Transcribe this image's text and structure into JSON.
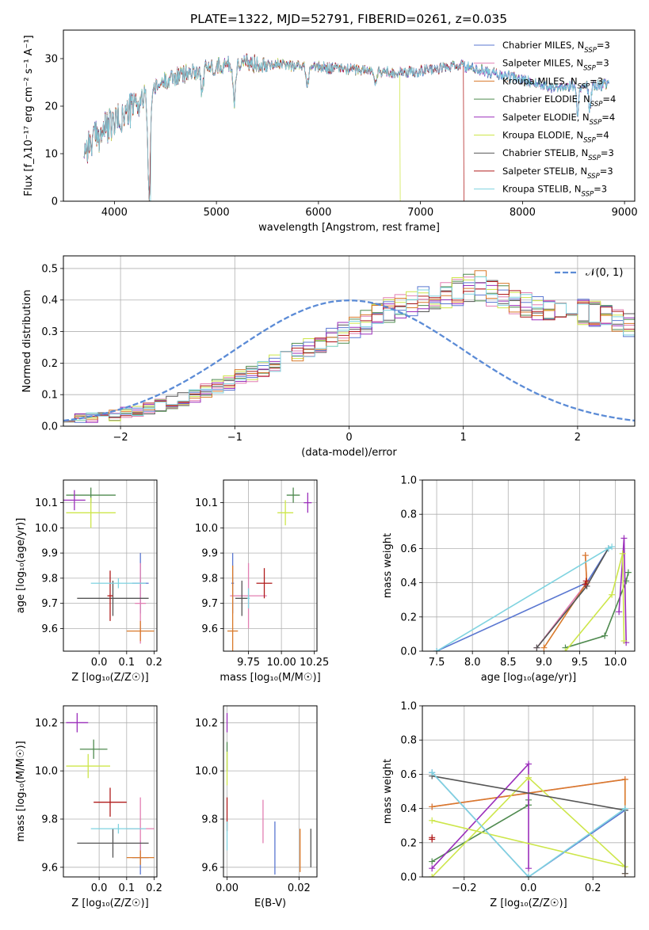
{
  "figure": {
    "title": "PLATE=1322, MJD=52791, FIBERID=0261, z=0.035"
  },
  "colors": {
    "chabrier_miles": "#5a77d1",
    "salpeter_miles": "#e27fb2",
    "kroupa_miles": "#d97a2b",
    "chabrier_elodie": "#4f8a4f",
    "salpeter_elodie": "#9b2fbb",
    "kroupa_elodie": "#cde64a",
    "chabrier_stelib": "#555555",
    "salpeter_stelib": "#b01c1c",
    "kroupa_stelib": "#7fd3e0",
    "gaussian": "#5b8bd6"
  },
  "chart_data": [
    {
      "id": "spectrum",
      "type": "line",
      "xlabel": "wavelength [Angstrom, rest frame]",
      "ylabel": "Flux [f_λ10⁻¹⁷ erg cm⁻² s⁻¹ A⁻¹]",
      "xlim": [
        3500,
        9100
      ],
      "ylim": [
        0,
        36
      ],
      "xticks": [
        4000,
        5000,
        6000,
        7000,
        8000,
        9000
      ],
      "yticks": [
        0,
        10,
        20,
        30
      ],
      "grid": false,
      "legend_position": "top-right",
      "legend": [
        "Chabrier MILES, N_SSP=3",
        "Salpeter MILES, N_SSP=3",
        "Kroupa MILES, N_SSP=3",
        "Chabrier ELODIE, N_SSP=4",
        "Salpeter ELODIE, N_SSP=4",
        "Kroupa ELODIE, N_SSP=4",
        "Chabrier STELIB, N_SSP=3",
        "Salpeter STELIB, N_SSP=3",
        "Kroupa STELIB, N_SSP=3"
      ],
      "continuum": {
        "x": [
          3700,
          3900,
          4100,
          4300,
          4500,
          4800,
          5000,
          5200,
          5500,
          5800,
          6000,
          6200,
          6500,
          6800,
          7000,
          7200,
          7400,
          7700,
          8000,
          8300,
          8600,
          8800
        ],
        "y": [
          11,
          15,
          18,
          22,
          25.5,
          27.5,
          28.5,
          29,
          29,
          28.5,
          28.2,
          28,
          27.5,
          27,
          27.5,
          28,
          28.5,
          27,
          25.5,
          24,
          24.5,
          24.5
        ]
      },
      "features": [
        {
          "x": 4340,
          "depth": 22
        },
        {
          "x": 4860,
          "depth": 5
        },
        {
          "x": 5175,
          "depth": 8
        },
        {
          "x": 5890,
          "depth": 4
        },
        {
          "x": 6560,
          "depth": 3
        },
        {
          "x": 8540,
          "depth": 6
        },
        {
          "x": 8660,
          "depth": 5
        }
      ],
      "cutoffs": [
        {
          "series": "kroupa_elodie",
          "x": 6800
        },
        {
          "series": "salpeter_stelib",
          "x": 7420
        }
      ]
    },
    {
      "id": "residuals",
      "type": "line",
      "xlabel": "(data-model)/error",
      "ylabel": "Normed distribution",
      "xlim": [
        -2.5,
        2.5
      ],
      "ylim": [
        0,
        0.54
      ],
      "xticks": [
        -2,
        -1,
        0,
        1,
        2
      ],
      "yticks": [
        0.0,
        0.1,
        0.2,
        0.3,
        0.4,
        0.5
      ],
      "grid": true,
      "legend_position": "top-right",
      "legend": [
        "𝒩(0, 1)"
      ],
      "bin_width": 0.1,
      "bin_start": -2.5,
      "base_hist": [
        0.022,
        0.024,
        0.027,
        0.028,
        0.034,
        0.042,
        0.048,
        0.056,
        0.066,
        0.075,
        0.086,
        0.098,
        0.111,
        0.124,
        0.139,
        0.153,
        0.168,
        0.184,
        0.199,
        0.215,
        0.231,
        0.246,
        0.262,
        0.278,
        0.296,
        0.318,
        0.332,
        0.349,
        0.368,
        0.383,
        0.392,
        0.398,
        0.407,
        0.418,
        0.428,
        0.435,
        0.445,
        0.422,
        0.41,
        0.39,
        0.38,
        0.375,
        0.37,
        0.372,
        0.368,
        0.363,
        0.355,
        0.346,
        0.333,
        0.318,
        0.302,
        0.287,
        0.272,
        0.254,
        0.234,
        0.213,
        0.192,
        0.171,
        0.151,
        0.133,
        0.118,
        0.104,
        0.092,
        0.081,
        0.071,
        0.062,
        0.056,
        0.052,
        0.049,
        0.047,
        0.045,
        0.042,
        0.038,
        0.035,
        0.032,
        0.03,
        0.028,
        0.027,
        0.026,
        0.025
      ],
      "gaussian": {
        "mean": 0,
        "sigma": 1
      }
    },
    {
      "id": "age-vs-Z",
      "type": "scatter",
      "xlabel": "Z [log₁₀(Z/Z☉)]",
      "ylabel": "age  [log₁₀(age/yr)]",
      "xlim": [
        -0.13,
        0.21
      ],
      "ylim": [
        9.51,
        10.19
      ],
      "xticks": [
        0.0,
        0.1,
        0.2
      ],
      "yticks": [
        9.6,
        9.7,
        9.8,
        9.9,
        10.0,
        10.1
      ],
      "grid": true,
      "points": [
        {
          "series": "chabrier_miles",
          "x": 0.15,
          "y": 9.78,
          "xerr": 0.03,
          "yerr": 0.12
        },
        {
          "series": "salpeter_miles",
          "x": 0.15,
          "y": 9.7,
          "xerr": 0.02,
          "yerr": 0.16
        },
        {
          "series": "kroupa_miles",
          "x": 0.15,
          "y": 9.59,
          "xerr": 0.05,
          "yerr": 0.04
        },
        {
          "series": "chabrier_elodie",
          "x": -0.03,
          "y": 10.13,
          "xerr": 0.09,
          "yerr": 0.03
        },
        {
          "series": "salpeter_elodie",
          "x": -0.09,
          "y": 10.11,
          "xerr": 0.04,
          "yerr": 0.04
        },
        {
          "series": "kroupa_elodie",
          "x": -0.03,
          "y": 10.06,
          "xerr": 0.09,
          "yerr": 0.06
        },
        {
          "series": "chabrier_stelib",
          "x": 0.05,
          "y": 9.72,
          "xerr": 0.13,
          "yerr": 0.07
        },
        {
          "series": "salpeter_stelib",
          "x": 0.04,
          "y": 9.73,
          "xerr": 0.01,
          "yerr": 0.1
        },
        {
          "series": "kroupa_stelib",
          "x": 0.07,
          "y": 9.78,
          "xerr": 0.1,
          "yerr": 0.02
        }
      ]
    },
    {
      "id": "age-vs-mass",
      "type": "scatter",
      "xlabel": "mass [log₁₀(M/M☉)]",
      "ylabel": "",
      "xlim": [
        9.56,
        10.27
      ],
      "ylim": [
        9.51,
        10.19
      ],
      "xticks": [
        9.75,
        10.0,
        10.25
      ],
      "yticks": [
        9.6,
        9.7,
        9.8,
        9.9,
        10.0,
        10.1
      ],
      "grid": true,
      "points": [
        {
          "series": "chabrier_miles",
          "x": 9.63,
          "y": 9.78,
          "xerr": 0.01,
          "yerr": 0.12
        },
        {
          "series": "salpeter_miles",
          "x": 9.75,
          "y": 9.73,
          "xerr": 0.14,
          "yerr": 0.13
        },
        {
          "series": "kroupa_miles",
          "x": 9.63,
          "y": 9.59,
          "xerr": 0.04,
          "yerr": 0.26
        },
        {
          "series": "chabrier_elodie",
          "x": 10.09,
          "y": 10.13,
          "xerr": 0.05,
          "yerr": 0.03
        },
        {
          "series": "salpeter_elodie",
          "x": 10.2,
          "y": 10.1,
          "xerr": 0.03,
          "yerr": 0.04
        },
        {
          "series": "kroupa_elodie",
          "x": 10.03,
          "y": 10.06,
          "xerr": 0.06,
          "yerr": 0.05
        },
        {
          "series": "chabrier_stelib",
          "x": 9.7,
          "y": 9.72,
          "xerr": 0.05,
          "yerr": 0.07
        },
        {
          "series": "salpeter_stelib",
          "x": 9.87,
          "y": 9.78,
          "xerr": 0.06,
          "yerr": 0.06
        },
        {
          "series": "kroupa_stelib",
          "x": 9.75,
          "y": 9.72,
          "xerr": 0.01,
          "yerr": 0.04
        }
      ]
    },
    {
      "id": "mass-weight-vs-age",
      "type": "line",
      "xlabel": "age  [log₁₀(age/yr)]",
      "ylabel": "mass weight",
      "xlim": [
        7.3,
        10.27
      ],
      "ylim": [
        0,
        1.0
      ],
      "xticks": [
        7.5,
        8.0,
        8.5,
        9.0,
        9.5,
        10.0
      ],
      "yticks": [
        0.0,
        0.2,
        0.4,
        0.6,
        0.8,
        1.0
      ],
      "grid": true,
      "series": [
        {
          "series": "chabrier_miles",
          "x": [
            7.5,
            9.6,
            9.9
          ],
          "y": [
            0.0,
            0.4,
            0.6
          ]
        },
        {
          "series": "salpeter_miles",
          "x": [
            8.9,
            9.6,
            9.58
          ],
          "y": [
            0.02,
            0.4,
            0.56
          ]
        },
        {
          "series": "kroupa_miles",
          "x": [
            9.0,
            9.6,
            9.58
          ],
          "y": [
            0.02,
            0.4,
            0.56
          ]
        },
        {
          "series": "chabrier_elodie",
          "x": [
            9.3,
            9.85,
            10.15,
            10.18
          ],
          "y": [
            0.02,
            0.09,
            0.41,
            0.46
          ]
        },
        {
          "series": "salpeter_elodie",
          "x": [
            10.05,
            10.12,
            10.15
          ],
          "y": [
            0.23,
            0.66,
            0.05
          ]
        },
        {
          "series": "kroupa_elodie",
          "x": [
            9.3,
            9.95,
            10.1,
            10.12
          ],
          "y": [
            0.0,
            0.33,
            0.57,
            0.06
          ]
        },
        {
          "series": "chabrier_stelib",
          "x": [
            8.9,
            9.6,
            9.9
          ],
          "y": [
            0.02,
            0.38,
            0.6
          ]
        },
        {
          "series": "salpeter_stelib",
          "x": [
            9.58,
            9.59
          ],
          "y": [
            0.39,
            0.41
          ]
        },
        {
          "series": "kroupa_stelib",
          "x": [
            7.5,
            9.9,
            9.95
          ],
          "y": [
            0.0,
            0.6,
            0.61
          ]
        }
      ]
    },
    {
      "id": "mass-vs-Z",
      "type": "scatter",
      "xlabel": "Z [log₁₀(Z/Z☉)]",
      "ylabel": "mass [log₁₀(M/M☉)]",
      "xlim": [
        -0.13,
        0.21
      ],
      "ylim": [
        9.56,
        10.27
      ],
      "xticks": [
        0.0,
        0.1,
        0.2
      ],
      "yticks": [
        9.6,
        9.8,
        10.0,
        10.2
      ],
      "grid": true,
      "points": [
        {
          "series": "chabrier_miles",
          "x": 0.15,
          "y": 9.64,
          "xerr": 0.03,
          "yerr": 0.07
        },
        {
          "series": "salpeter_miles",
          "x": 0.15,
          "y": 9.76,
          "xerr": 0.05,
          "yerr": 0.13
        },
        {
          "series": "kroupa_miles",
          "x": 0.15,
          "y": 9.64,
          "xerr": 0.05,
          "yerr": 0.03
        },
        {
          "series": "chabrier_elodie",
          "x": -0.02,
          "y": 10.09,
          "xerr": 0.05,
          "yerr": 0.04
        },
        {
          "series": "salpeter_elodie",
          "x": -0.08,
          "y": 10.2,
          "xerr": 0.04,
          "yerr": 0.04
        },
        {
          "series": "kroupa_elodie",
          "x": -0.04,
          "y": 10.02,
          "xerr": 0.08,
          "yerr": 0.05
        },
        {
          "series": "chabrier_stelib",
          "x": 0.05,
          "y": 9.7,
          "xerr": 0.13,
          "yerr": 0.06
        },
        {
          "series": "salpeter_stelib",
          "x": 0.04,
          "y": 9.87,
          "xerr": 0.06,
          "yerr": 0.06
        },
        {
          "series": "kroupa_stelib",
          "x": 0.07,
          "y": 9.76,
          "xerr": 0.1,
          "yerr": 0.02
        }
      ]
    },
    {
      "id": "mass-vs-EBV",
      "type": "scatter",
      "xlabel": "E(B-V)",
      "ylabel": "",
      "xlim": [
        -0.001,
        0.025
      ],
      "ylim": [
        9.56,
        10.27
      ],
      "xticks": [
        0.0,
        0.02
      ],
      "yticks": [
        9.6,
        9.8,
        10.0,
        10.2
      ],
      "grid": true,
      "points": [
        {
          "series": "chabrier_miles",
          "x": 0.0133,
          "y": 9.68,
          "xerr": 0,
          "yerr": 0.11
        },
        {
          "series": "salpeter_miles",
          "x": 0.01,
          "y": 9.79,
          "xerr": 0,
          "yerr": 0.09
        },
        {
          "series": "kroupa_miles",
          "x": 0.0203,
          "y": 9.67,
          "xerr": 0,
          "yerr": 0.09
        },
        {
          "series": "chabrier_elodie",
          "x": 0.0,
          "y": 10.06,
          "xerr": 0,
          "yerr": 0.06
        },
        {
          "series": "salpeter_elodie",
          "x": 0.0,
          "y": 10.2,
          "xerr": 0,
          "yerr": 0.04
        },
        {
          "series": "kroupa_elodie",
          "x": 0.0,
          "y": 10.01,
          "xerr": 0,
          "yerr": 0.07
        },
        {
          "series": "chabrier_stelib",
          "x": 0.0233,
          "y": 9.68,
          "xerr": 0,
          "yerr": 0.08
        },
        {
          "series": "salpeter_stelib",
          "x": 0.0,
          "y": 9.82,
          "xerr": 0,
          "yerr": 0.07
        },
        {
          "series": "kroupa_stelib",
          "x": 0.0,
          "y": 9.73,
          "xerr": 0,
          "yerr": 0.06
        }
      ]
    },
    {
      "id": "mass-weight-vs-Z",
      "type": "line",
      "xlabel": "Z [log₁₀(Z/Z☉)]",
      "ylabel": "mass weight",
      "xlim": [
        -0.33,
        0.33
      ],
      "ylim": [
        0,
        1.0
      ],
      "xticks": [
        -0.2,
        0.0,
        0.2
      ],
      "yticks": [
        0.0,
        0.2,
        0.4,
        0.6,
        0.8,
        1.0
      ],
      "grid": true,
      "series": [
        {
          "series": "chabrier_miles",
          "x": [
            -0.3,
            0.0,
            0.3
          ],
          "y": [
            0.61,
            0.0,
            0.39
          ]
        },
        {
          "series": "salpeter_miles",
          "x": [
            -0.3,
            0.3
          ],
          "y": [
            0.41,
            0.57
          ]
        },
        {
          "series": "kroupa_miles",
          "x": [
            -0.3,
            0.3,
            0.3
          ],
          "y": [
            0.41,
            0.57,
            0.02
          ]
        },
        {
          "series": "chabrier_elodie",
          "x": [
            -0.3,
            0.0,
            0.0
          ],
          "y": [
            0.09,
            0.42,
            0.45
          ]
        },
        {
          "series": "salpeter_elodie",
          "x": [
            -0.3,
            0.0,
            0.0
          ],
          "y": [
            0.05,
            0.66,
            0.05
          ]
        },
        {
          "series": "kroupa_elodie",
          "x": [
            -0.3,
            0.0,
            0.3,
            -0.3
          ],
          "y": [
            0.0,
            0.58,
            0.06,
            0.33
          ]
        },
        {
          "series": "chabrier_stelib",
          "x": [
            -0.3,
            0.3,
            0.3
          ],
          "y": [
            0.59,
            0.39,
            0.02
          ]
        },
        {
          "series": "salpeter_stelib",
          "x": [
            -0.3,
            -0.3
          ],
          "y": [
            0.22,
            0.23
          ]
        },
        {
          "series": "kroupa_stelib",
          "x": [
            -0.3,
            0.0,
            0.3
          ],
          "y": [
            0.61,
            0.0,
            0.4
          ]
        }
      ]
    }
  ]
}
